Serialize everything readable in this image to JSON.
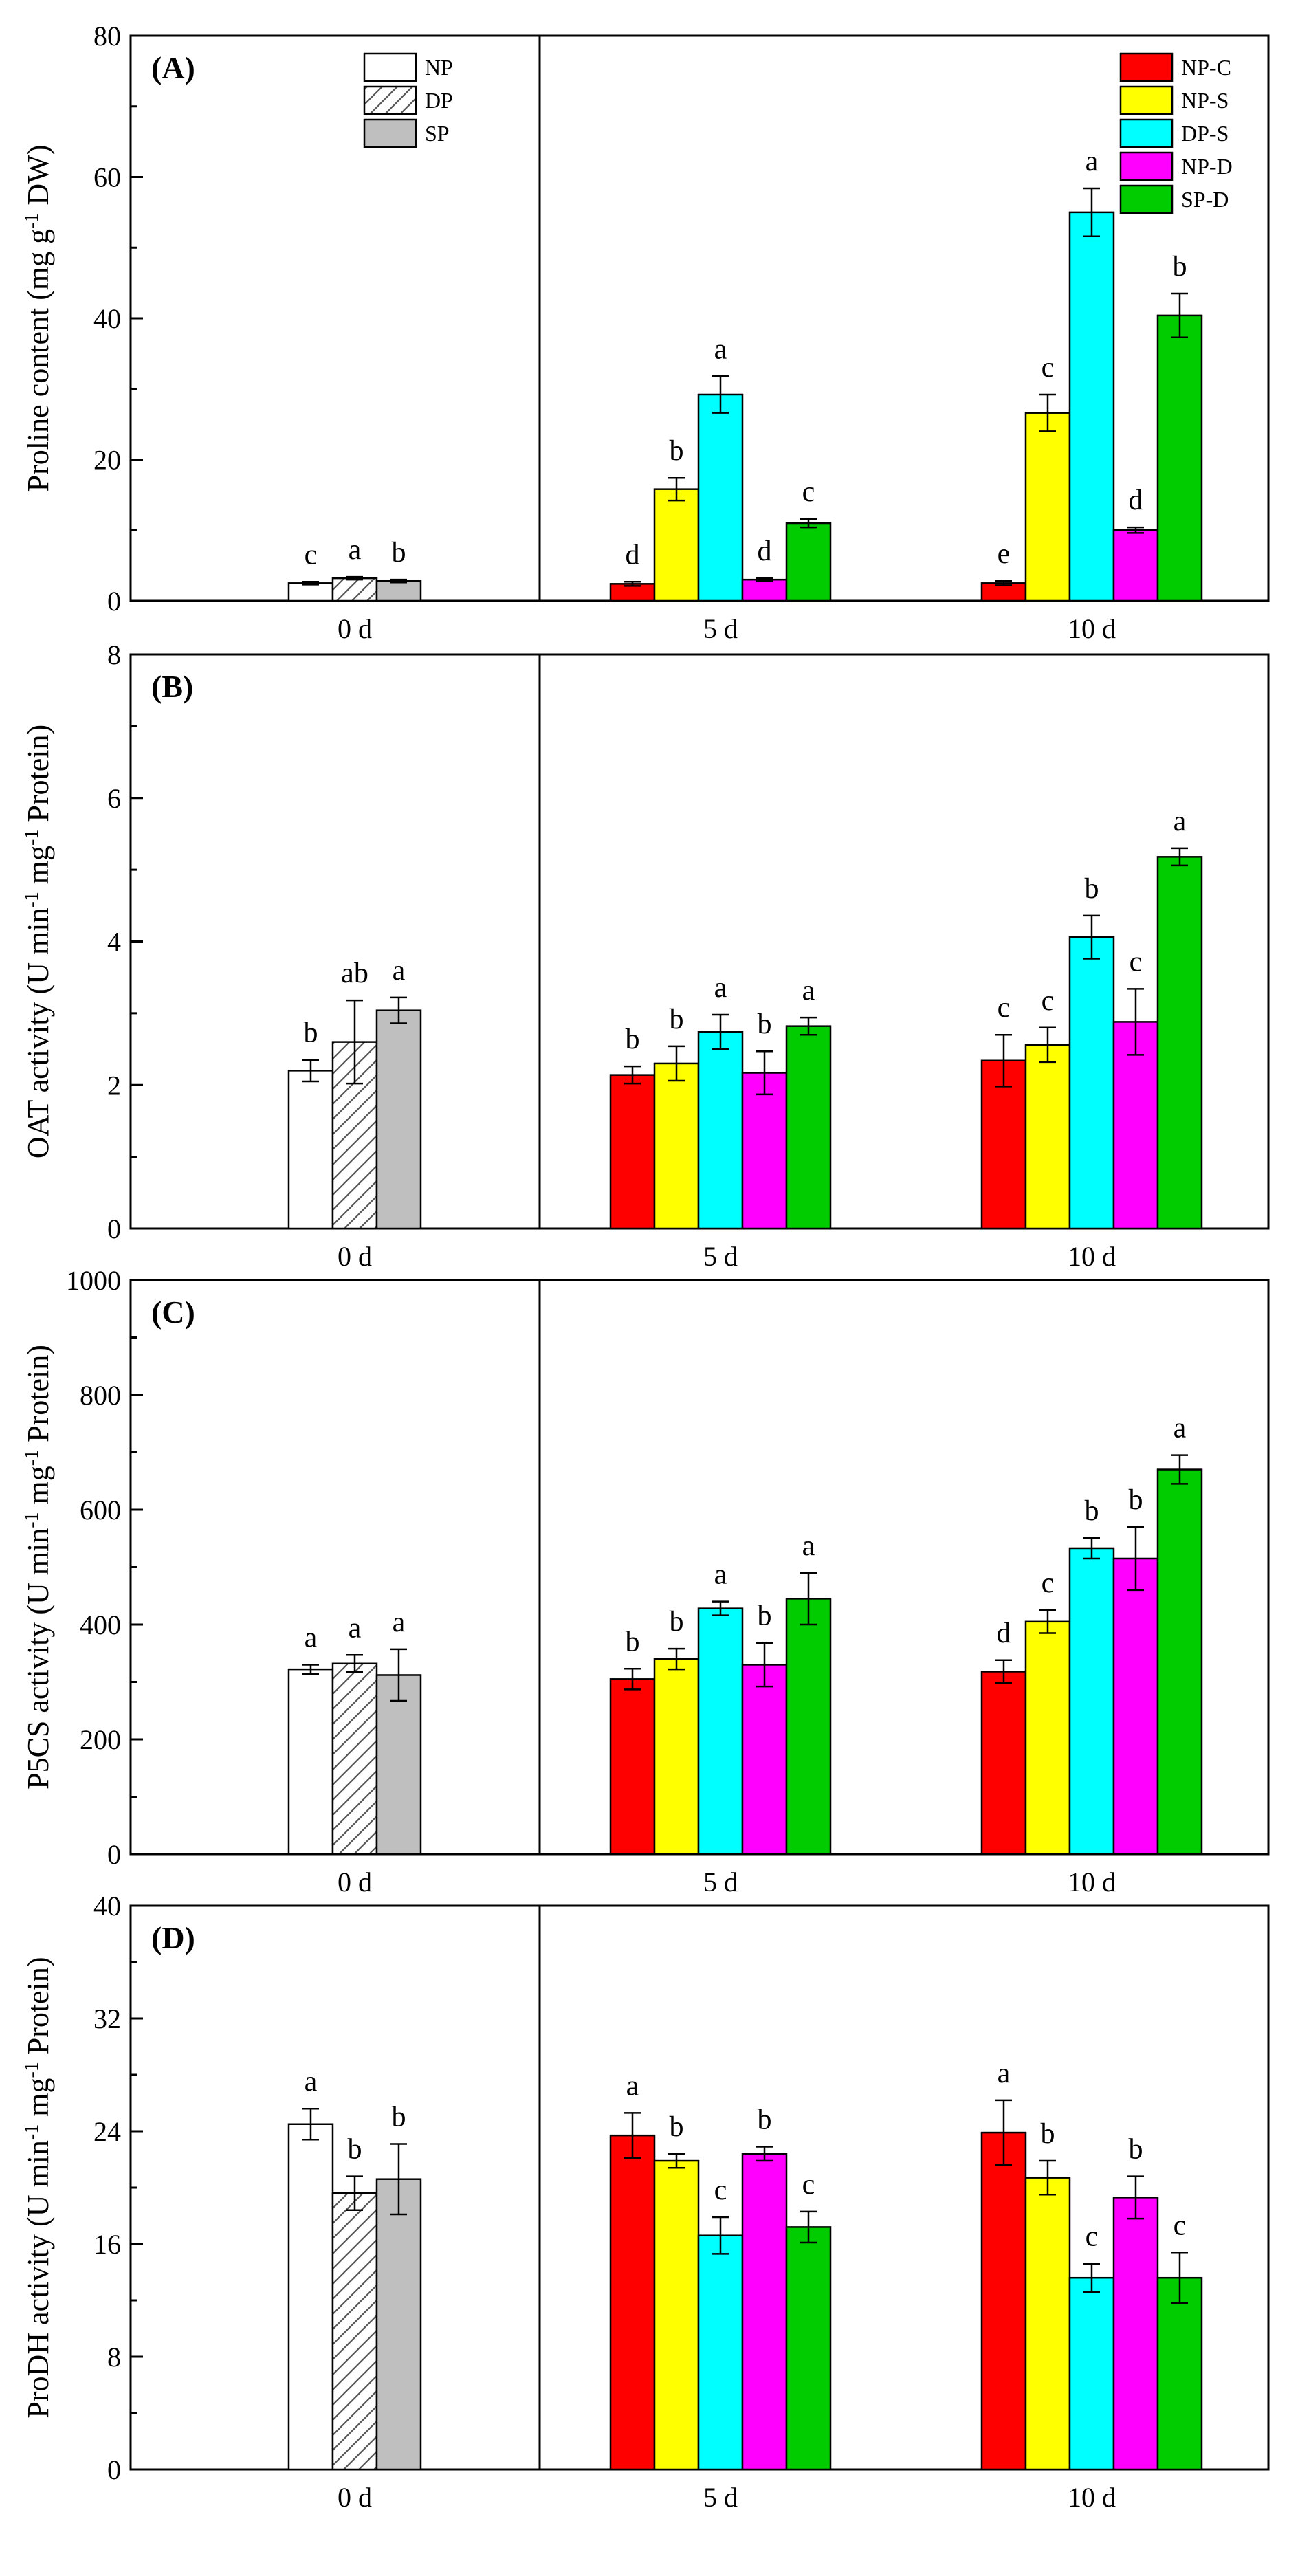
{
  "figure": {
    "group_labels": [
      "0 d",
      "5 d",
      "10 d"
    ]
  },
  "legend_left": [
    {
      "name": "NP",
      "pattern": "white"
    },
    {
      "name": "DP",
      "pattern": "hatch"
    },
    {
      "name": "SP",
      "pattern": "gray"
    }
  ],
  "legend_right": [
    {
      "name": "NP-C",
      "color": "#ff0000"
    },
    {
      "name": "NP-S",
      "color": "#ffff00"
    },
    {
      "name": "DP-S",
      "color": "#00ffff"
    },
    {
      "name": "NP-D",
      "color": "#ff00ff"
    },
    {
      "name": "SP-D",
      "color": "#00cc00"
    }
  ],
  "colors": {
    "NP": "#ffffff",
    "DP": "#ffffff",
    "SP": "#bfbfbf",
    "NP-C": "#ff0000",
    "NP-S": "#ffff00",
    "DP-S": "#00ffff",
    "NP-D": "#ff00ff",
    "SP-D": "#00cc00"
  },
  "chart_data": [
    {
      "type": "bar",
      "panel": "(A)",
      "ylabel": "Proline content (mg g-1 DW)",
      "ylabel_parts": [
        "Proline content (mg g",
        "-1",
        " DW)"
      ],
      "ylim": [
        0,
        80
      ],
      "yticks": [
        "0",
        "20",
        "40",
        "60",
        "80"
      ],
      "groups": [
        {
          "label": "0 d",
          "series": [
            "NP",
            "DP",
            "SP"
          ],
          "values": [
            2.5,
            3.2,
            2.8
          ],
          "errors": [
            0.2,
            0.2,
            0.2
          ],
          "letters": [
            "c",
            "a",
            "b"
          ]
        },
        {
          "label": "5 d",
          "series": [
            "NP-C",
            "NP-S",
            "DP-S",
            "NP-D",
            "SP-D"
          ],
          "values": [
            2.4,
            15.8,
            29.2,
            3.0,
            11.0
          ],
          "errors": [
            0.3,
            1.6,
            2.6,
            0.2,
            0.6
          ],
          "letters": [
            "d",
            "b",
            "a",
            "d",
            "c"
          ]
        },
        {
          "label": "10 d",
          "series": [
            "NP-C",
            "NP-S",
            "DP-S",
            "NP-D",
            "SP-D"
          ],
          "values": [
            2.5,
            26.6,
            55.0,
            10.0,
            40.4
          ],
          "errors": [
            0.3,
            2.6,
            3.4,
            0.4,
            3.1
          ],
          "letters": [
            "e",
            "c",
            "a",
            "d",
            "b"
          ]
        }
      ]
    },
    {
      "type": "bar",
      "panel": "(B)",
      "ylabel": "OAT activity (U min-1 mg-1 Protein)",
      "ylabel_parts": [
        "OAT activity (U min",
        "-1",
        " mg",
        "-1",
        " Protein)"
      ],
      "ylim": [
        0,
        8
      ],
      "yticks": [
        "0",
        "2",
        "4",
        "6",
        "8"
      ],
      "groups": [
        {
          "label": "0 d",
          "series": [
            "NP",
            "DP",
            "SP"
          ],
          "values": [
            2.2,
            2.6,
            3.04
          ],
          "errors": [
            0.15,
            0.58,
            0.18
          ],
          "letters": [
            "b",
            "ab",
            "a"
          ]
        },
        {
          "label": "5 d",
          "series": [
            "NP-C",
            "NP-S",
            "DP-S",
            "NP-D",
            "SP-D"
          ],
          "values": [
            2.14,
            2.3,
            2.74,
            2.17,
            2.82
          ],
          "errors": [
            0.12,
            0.24,
            0.24,
            0.3,
            0.12
          ],
          "letters": [
            "b",
            "b",
            "a",
            "b",
            "a"
          ]
        },
        {
          "label": "10 d",
          "series": [
            "NP-C",
            "NP-S",
            "DP-S",
            "NP-D",
            "SP-D"
          ],
          "values": [
            2.34,
            2.56,
            4.06,
            2.88,
            5.18
          ],
          "errors": [
            0.36,
            0.24,
            0.3,
            0.46,
            0.12
          ],
          "letters": [
            "c",
            "c",
            "b",
            "c",
            "a"
          ]
        }
      ]
    },
    {
      "type": "bar",
      "panel": "(C)",
      "ylabel": "P5CS activity (U min-1 mg-1 Protein)",
      "ylabel_parts": [
        "P5CS activity (U min",
        "-1",
        " mg",
        "-1",
        " Protein)"
      ],
      "ylim": [
        0,
        1000
      ],
      "yticks": [
        "0",
        "200",
        "400",
        "600",
        "800",
        "1000"
      ],
      "groups": [
        {
          "label": "0 d",
          "series": [
            "NP",
            "DP",
            "SP"
          ],
          "values": [
            322,
            332,
            312
          ],
          "errors": [
            8,
            15,
            45
          ],
          "letters": [
            "a",
            "a",
            "a"
          ]
        },
        {
          "label": "5 d",
          "series": [
            "NP-C",
            "NP-S",
            "DP-S",
            "NP-D",
            "SP-D"
          ],
          "values": [
            305,
            340,
            428,
            330,
            445
          ],
          "errors": [
            18,
            18,
            12,
            38,
            45
          ],
          "letters": [
            "b",
            "b",
            "a",
            "b",
            "a"
          ]
        },
        {
          "label": "10 d",
          "series": [
            "NP-C",
            "NP-S",
            "DP-S",
            "NP-D",
            "SP-D"
          ],
          "values": [
            318,
            405,
            533,
            515,
            670
          ],
          "errors": [
            20,
            20,
            18,
            55,
            25
          ],
          "letters": [
            "d",
            "c",
            "b",
            "b",
            "a"
          ]
        }
      ]
    },
    {
      "type": "bar",
      "panel": "(D)",
      "ylabel": "ProDH activity (U min-1 mg-1 Protein)",
      "ylabel_parts": [
        "ProDH activity (U min",
        "-1",
        " mg",
        "-1",
        " Protein)"
      ],
      "ylim": [
        0,
        40
      ],
      "yticks": [
        "0",
        "8",
        "16",
        "24",
        "32",
        "40"
      ],
      "groups": [
        {
          "label": "0 d",
          "series": [
            "NP",
            "DP",
            "SP"
          ],
          "values": [
            24.5,
            19.6,
            20.6
          ],
          "errors": [
            1.1,
            1.2,
            2.5
          ],
          "letters": [
            "a",
            "b",
            "b"
          ]
        },
        {
          "label": "5 d",
          "series": [
            "NP-C",
            "NP-S",
            "DP-S",
            "NP-D",
            "SP-D"
          ],
          "values": [
            23.7,
            21.9,
            16.6,
            22.4,
            17.2
          ],
          "errors": [
            1.6,
            0.5,
            1.3,
            0.5,
            1.1
          ],
          "letters": [
            "a",
            "b",
            "c",
            "b",
            "c"
          ]
        },
        {
          "label": "10 d",
          "series": [
            "NP-C",
            "NP-S",
            "DP-S",
            "NP-D",
            "SP-D"
          ],
          "values": [
            23.9,
            20.7,
            13.6,
            19.3,
            13.6
          ],
          "errors": [
            2.3,
            1.2,
            1.0,
            1.5,
            1.8
          ],
          "letters": [
            "a",
            "b",
            "c",
            "b",
            "c"
          ]
        }
      ]
    }
  ]
}
